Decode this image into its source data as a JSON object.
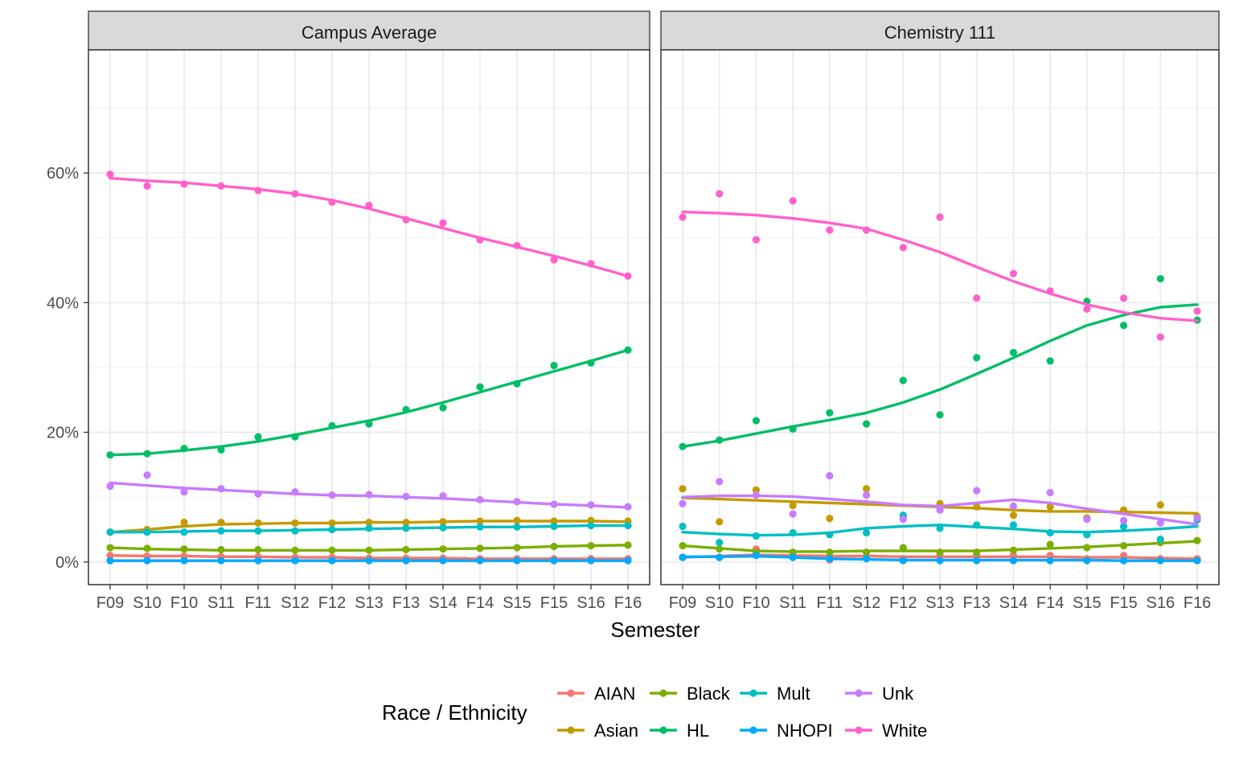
{
  "chart_data": {
    "type": "line",
    "x": [
      "F09",
      "S10",
      "F10",
      "S11",
      "F11",
      "S12",
      "F12",
      "S13",
      "F13",
      "S14",
      "F14",
      "S15",
      "F15",
      "S16",
      "F16"
    ],
    "xlabel": "Semester",
    "ylabel": "",
    "yticks": [
      "0%",
      "20%",
      "40%",
      "60%"
    ],
    "ylim": [
      -0.035,
      0.79
    ],
    "grid": true,
    "legend": {
      "title": "Race / Ethnicity",
      "placement": "bottom"
    },
    "colors": {
      "AIAN": "#F8766D",
      "Asian": "#C49A00",
      "Black": "#7CAE00",
      "HL": "#00BE67",
      "Mult": "#00BFC4",
      "NHOPI": "#00A9FF",
      "Unk": "#C77CFF",
      "White": "#FF61CC"
    },
    "legend_layout": [
      [
        "AIAN",
        "Black",
        "Mult",
        "Unk"
      ],
      [
        "Asian",
        "HL",
        "NHOPI",
        "White"
      ]
    ],
    "panels": [
      {
        "title": "Campus Average",
        "series": [
          {
            "name": "AIAN",
            "points": [
              0.01,
              0.009,
              0.009,
              0.008,
              0.008,
              0.007,
              0.007,
              0.006,
              0.006,
              0.006,
              0.005,
              0.005,
              0.005,
              0.005,
              0.005
            ],
            "smooth": [
              0.01,
              0.009,
              0.009,
              0.008,
              0.008,
              0.007,
              0.007,
              0.006,
              0.006,
              0.006,
              0.005,
              0.005,
              0.005,
              0.005,
              0.005
            ]
          },
          {
            "name": "Asian",
            "points": [
              0.046,
              0.05,
              0.061,
              0.061,
              0.06,
              0.06,
              0.06,
              0.061,
              0.061,
              0.062,
              0.063,
              0.064,
              0.063,
              0.064,
              0.063
            ],
            "smooth": [
              0.046,
              0.05,
              0.055,
              0.058,
              0.059,
              0.06,
              0.06,
              0.061,
              0.061,
              0.062,
              0.063,
              0.063,
              0.063,
              0.063,
              0.062
            ]
          },
          {
            "name": "Black",
            "points": [
              0.022,
              0.021,
              0.02,
              0.019,
              0.019,
              0.018,
              0.018,
              0.018,
              0.019,
              0.02,
              0.021,
              0.022,
              0.024,
              0.025,
              0.026
            ],
            "smooth": [
              0.022,
              0.02,
              0.019,
              0.018,
              0.018,
              0.018,
              0.018,
              0.018,
              0.019,
              0.02,
              0.021,
              0.022,
              0.024,
              0.025,
              0.026
            ]
          },
          {
            "name": "HL",
            "points": [
              0.165,
              0.167,
              0.175,
              0.173,
              0.193,
              0.193,
              0.21,
              0.213,
              0.235,
              0.238,
              0.27,
              0.275,
              0.303,
              0.307,
              0.327
            ],
            "smooth": [
              0.165,
              0.167,
              0.172,
              0.178,
              0.186,
              0.196,
              0.207,
              0.218,
              0.231,
              0.246,
              0.262,
              0.278,
              0.294,
              0.31,
              0.327
            ]
          },
          {
            "name": "Mult",
            "points": [
              0.046,
              0.046,
              0.046,
              0.048,
              0.048,
              0.048,
              0.05,
              0.052,
              0.052,
              0.053,
              0.054,
              0.054,
              0.055,
              0.056,
              0.056
            ],
            "smooth": [
              0.046,
              0.046,
              0.047,
              0.048,
              0.048,
              0.049,
              0.05,
              0.051,
              0.052,
              0.053,
              0.054,
              0.054,
              0.055,
              0.056,
              0.056
            ]
          },
          {
            "name": "NHOPI",
            "points": [
              0.002,
              0.002,
              0.002,
              0.002,
              0.002,
              0.002,
              0.002,
              0.002,
              0.002,
              0.002,
              0.002,
              0.002,
              0.002,
              0.002,
              0.002
            ],
            "smooth": [
              0.002,
              0.002,
              0.002,
              0.002,
              0.002,
              0.002,
              0.002,
              0.002,
              0.002,
              0.002,
              0.002,
              0.002,
              0.002,
              0.002,
              0.002
            ]
          },
          {
            "name": "Unk",
            "points": [
              0.117,
              0.134,
              0.108,
              0.113,
              0.105,
              0.108,
              0.103,
              0.104,
              0.101,
              0.102,
              0.096,
              0.093,
              0.089,
              0.088,
              0.085
            ],
            "smooth": [
              0.122,
              0.118,
              0.114,
              0.111,
              0.108,
              0.105,
              0.103,
              0.102,
              0.1,
              0.098,
              0.095,
              0.092,
              0.089,
              0.087,
              0.084
            ]
          },
          {
            "name": "White",
            "points": [
              0.598,
              0.58,
              0.583,
              0.58,
              0.573,
              0.568,
              0.555,
              0.55,
              0.528,
              0.523,
              0.497,
              0.488,
              0.466,
              0.46,
              0.441
            ],
            "smooth": [
              0.592,
              0.588,
              0.585,
              0.58,
              0.575,
              0.568,
              0.558,
              0.545,
              0.53,
              0.515,
              0.5,
              0.486,
              0.472,
              0.457,
              0.441
            ]
          }
        ]
      },
      {
        "title": "Chemistry 111",
        "series": [
          {
            "name": "AIAN",
            "points": [
              0.007,
              0.007,
              0.02,
              0.01,
              0.003,
              0.008,
              0.005,
              0.01,
              0.01,
              0.01,
              0.01,
              0.005,
              0.01,
              0.005,
              0.005
            ],
            "smooth": [
              0.007,
              0.009,
              0.011,
              0.01,
              0.009,
              0.009,
              0.008,
              0.008,
              0.008,
              0.008,
              0.008,
              0.007,
              0.007,
              0.006,
              0.005
            ]
          },
          {
            "name": "Asian",
            "points": [
              0.113,
              0.062,
              0.111,
              0.087,
              0.067,
              0.113,
              0.07,
              0.09,
              0.085,
              0.072,
              0.085,
              0.068,
              0.08,
              0.088,
              0.07
            ],
            "smooth": [
              0.099,
              0.097,
              0.095,
              0.093,
              0.091,
              0.089,
              0.087,
              0.085,
              0.083,
              0.08,
              0.078,
              0.078,
              0.077,
              0.076,
              0.075
            ]
          },
          {
            "name": "Black",
            "points": [
              0.025,
              0.02,
              0.015,
              0.015,
              0.015,
              0.015,
              0.022,
              0.015,
              0.015,
              0.018,
              0.027,
              0.022,
              0.025,
              0.03,
              0.033
            ],
            "smooth": [
              0.025,
              0.021,
              0.017,
              0.016,
              0.016,
              0.017,
              0.017,
              0.017,
              0.017,
              0.019,
              0.021,
              0.023,
              0.026,
              0.029,
              0.032
            ]
          },
          {
            "name": "HL",
            "points": [
              0.178,
              0.188,
              0.218,
              0.205,
              0.23,
              0.213,
              0.28,
              0.227,
              0.315,
              0.323,
              0.31,
              0.402,
              0.365,
              0.437,
              0.373
            ],
            "smooth": [
              0.178,
              0.187,
              0.198,
              0.209,
              0.219,
              0.23,
              0.246,
              0.266,
              0.29,
              0.315,
              0.341,
              0.365,
              0.381,
              0.393,
              0.397
            ]
          },
          {
            "name": "Mult",
            "points": [
              0.055,
              0.03,
              0.04,
              0.045,
              0.042,
              0.045,
              0.072,
              0.052,
              0.057,
              0.057,
              0.045,
              0.042,
              0.055,
              0.035,
              0.065
            ],
            "smooth": [
              0.046,
              0.043,
              0.041,
              0.042,
              0.045,
              0.052,
              0.055,
              0.057,
              0.054,
              0.051,
              0.047,
              0.046,
              0.048,
              0.051,
              0.055
            ]
          },
          {
            "name": "NHOPI",
            "points": [
              0.007,
              0.007,
              0.01,
              0.007,
              0.005,
              0.005,
              0.002,
              0.002,
              0.002,
              0.002,
              0.002,
              0.002,
              0.002,
              0.002,
              0.002
            ],
            "smooth": [
              0.008,
              0.008,
              0.009,
              0.007,
              0.005,
              0.004,
              0.003,
              0.003,
              0.003,
              0.003,
              0.003,
              0.003,
              0.002,
              0.002,
              0.002
            ]
          },
          {
            "name": "Unk",
            "points": [
              0.09,
              0.124,
              0.103,
              0.074,
              0.133,
              0.103,
              0.066,
              0.08,
              0.11,
              0.086,
              0.107,
              0.066,
              0.064,
              0.06,
              0.068
            ],
            "smooth": [
              0.1,
              0.102,
              0.102,
              0.101,
              0.097,
              0.093,
              0.088,
              0.086,
              0.091,
              0.096,
              0.091,
              0.082,
              0.074,
              0.066,
              0.058
            ]
          },
          {
            "name": "White",
            "points": [
              0.532,
              0.568,
              0.497,
              0.557,
              0.512,
              0.512,
              0.485,
              0.532,
              0.407,
              0.445,
              0.418,
              0.39,
              0.407,
              0.347,
              0.387
            ],
            "smooth": [
              0.54,
              0.538,
              0.535,
              0.53,
              0.523,
              0.514,
              0.497,
              0.478,
              0.455,
              0.433,
              0.414,
              0.397,
              0.385,
              0.376,
              0.372
            ]
          }
        ]
      }
    ]
  }
}
